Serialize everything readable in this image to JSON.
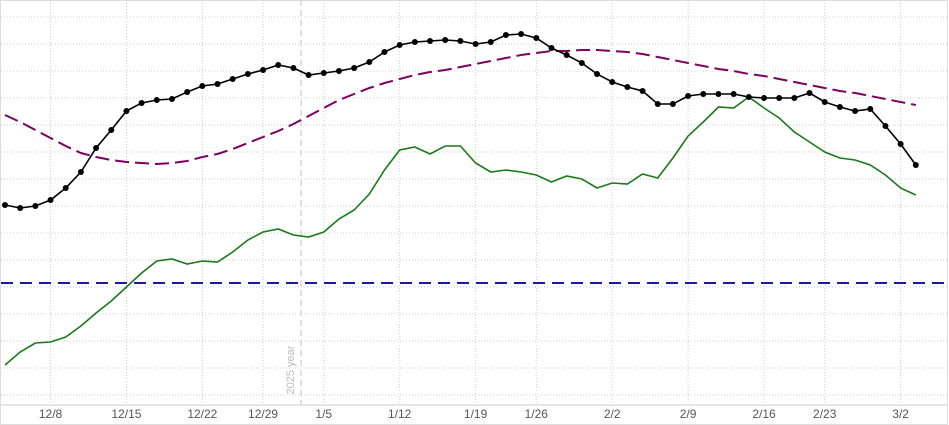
{
  "chart_data": {
    "type": "line",
    "categories": [
      null,
      null,
      null,
      "12/8",
      null,
      null,
      null,
      null,
      "12/15",
      null,
      null,
      null,
      null,
      "12/22",
      null,
      null,
      null,
      "12/29",
      null,
      null,
      null,
      "1/5",
      null,
      null,
      null,
      null,
      "1/12",
      null,
      null,
      null,
      null,
      "1/19",
      null,
      null,
      null,
      "1/26",
      null,
      null,
      null,
      null,
      "2/2",
      null,
      null,
      null,
      null,
      "2/9",
      null,
      null,
      null,
      null,
      "2/16",
      null,
      null,
      null,
      "2/23",
      null,
      null,
      null,
      null,
      "3/2",
      null
    ],
    "ylim": [
      0,
      405
    ],
    "grid": true,
    "series": [
      {
        "color": "#800060",
        "dash": true,
        "markers": false,
        "values": [
          290,
          283,
          275,
          267,
          259,
          252,
          248,
          245,
          243,
          242,
          241,
          242,
          244,
          248,
          251,
          256,
          262,
          268,
          274,
          281,
          289,
          297,
          305,
          311,
          317,
          322,
          326,
          330,
          333,
          335,
          338,
          341,
          344,
          347,
          350,
          352,
          354,
          354,
          355,
          355,
          354,
          353,
          351,
          348,
          345,
          342,
          339,
          336,
          334,
          331,
          329,
          326,
          323,
          320,
          317,
          314,
          312,
          309,
          306,
          303,
          300
        ]
      },
      {
        "color": "#1a7a1a",
        "dash": false,
        "markers": false,
        "values": [
          40,
          53,
          62,
          63,
          68,
          79,
          92,
          104,
          118,
          132,
          144,
          146,
          141,
          144,
          143,
          153,
          165,
          173,
          176,
          170,
          168,
          173,
          186,
          195,
          211,
          235,
          255,
          258,
          251,
          259,
          259,
          242,
          233,
          235,
          233,
          230,
          223,
          229,
          226,
          217,
          222,
          221,
          231,
          227,
          247,
          269,
          283,
          298,
          297,
          308,
          297,
          287,
          273,
          263,
          253,
          247,
          245,
          240,
          230,
          217,
          210
        ]
      },
      {
        "color": "#000000",
        "dash": false,
        "markers": true,
        "values": [
          200,
          197,
          199,
          205,
          217,
          233,
          257,
          275,
          294,
          302,
          305,
          306,
          313,
          319,
          321,
          326,
          331,
          335,
          340,
          337,
          330,
          332,
          334,
          337,
          343,
          353,
          360,
          363,
          364,
          365,
          364,
          361,
          363,
          370,
          371,
          367,
          357,
          350,
          342,
          331,
          323,
          318,
          314,
          301,
          301,
          309,
          311,
          311,
          311,
          308,
          307,
          307,
          307,
          312,
          303,
          298,
          294,
          296,
          279,
          261,
          240
        ]
      }
    ],
    "hline": {
      "value": 122,
      "color": "#1a1aa0"
    },
    "year_marker": {
      "label": "2025 year",
      "index": 19.5
    }
  }
}
